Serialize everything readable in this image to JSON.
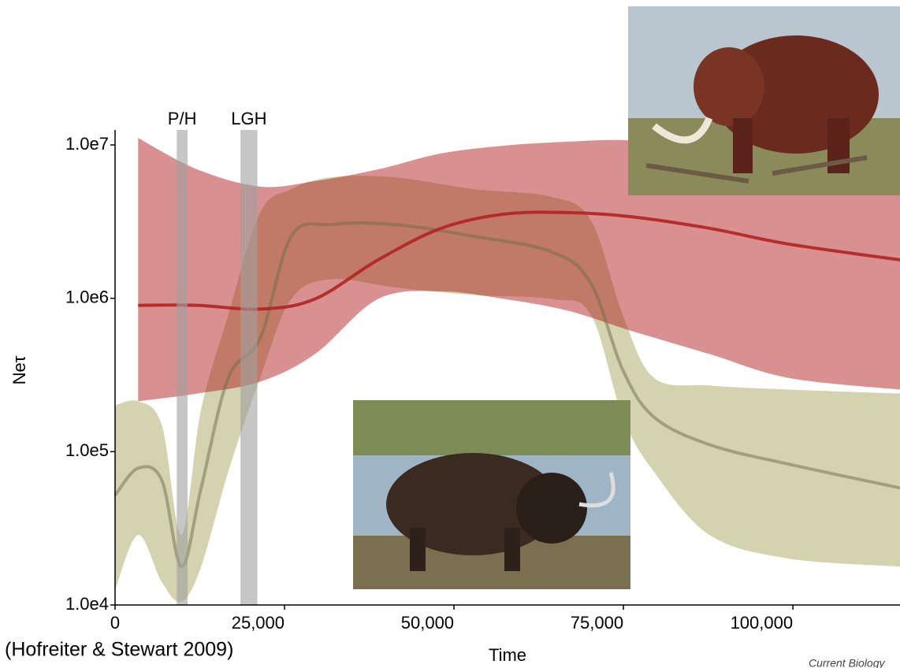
{
  "chart_data": {
    "type": "band",
    "xlabel": "Time",
    "ylabel": "Neτ",
    "source": "(Hofreiter & Stewart 2009)",
    "journal": "Current Biology",
    "log_y": true,
    "xlim": [
      0,
      115800
    ],
    "ylim": [
      10000,
      10000000
    ],
    "xticks": [
      0,
      {
        "value": 25000,
        "label": "25,000"
      },
      {
        "value": 50000,
        "label": "50,000"
      },
      {
        "value": 75000,
        "label": "75,000"
      },
      {
        "value": 100000,
        "label": "100,000"
      }
    ],
    "yticks": [
      {
        "value": 10000,
        "label": "1.0e4"
      },
      {
        "value": 100000,
        "label": "1.0e5"
      },
      {
        "value": 1000000,
        "label": "1.0e6"
      },
      {
        "value": 10000000,
        "label": "1.0e7"
      }
    ],
    "spans": [
      {
        "label": "P/H",
        "range": [
          9100,
          10700
        ],
        "color": "#a0a0a0"
      },
      {
        "label": "LGH",
        "range": [
          18500,
          21000
        ],
        "color": "#a0a0a0"
      }
    ],
    "series": [
      {
        "color": "#b5b57a",
        "x": [
          0,
          3400,
          6900,
          9800,
          12700,
          16700,
          21400,
          26000,
          31900,
          41200,
          52800,
          64400,
          70200,
          74900,
          79500,
          87700,
          99300,
          115800
        ],
        "values": [
          52000,
          78000,
          65000,
          17800,
          58000,
          303000,
          547000,
          2540000,
          3030000,
          3030000,
          2540000,
          2010000,
          1250000,
          341000,
          168000,
          111000,
          83000,
          58000
        ],
        "upper": [
          200000,
          213000,
          149000,
          28600,
          189000,
          780000,
          3620000,
          5160000,
          6160000,
          6160000,
          5160000,
          4590000,
          3220000,
          780000,
          303000,
          270000,
          254000,
          239000
        ],
        "lower": [
          12500,
          28600,
          14100,
          10500,
          17800,
          74000,
          303000,
          990000,
          1330000,
          1180000,
          1050000,
          990000,
          780000,
          168000,
          74000,
          28600,
          20100,
          17800
        ]
      },
      {
        "color": "#b22222",
        "x": [
          3400,
          12100,
          21400,
          29500,
          38800,
          48100,
          57400,
          66800,
          76000,
          87700,
          99300,
          115800
        ],
        "values": [
          900000,
          900000,
          850000,
          990000,
          1780000,
          2860000,
          3540000,
          3620000,
          3410000,
          2860000,
          2260000,
          1780000
        ],
        "upper": [
          11100000,
          6930000,
          5350000,
          5810000,
          6930000,
          8800000,
          9900000,
          10500000,
          10700000,
          9300000,
          8300000,
          7360000
        ],
        "lower": [
          213000,
          239000,
          286000,
          433000,
          990000,
          1110000,
          990000,
          830000,
          616000,
          433000,
          303000,
          254000
        ]
      }
    ]
  }
}
